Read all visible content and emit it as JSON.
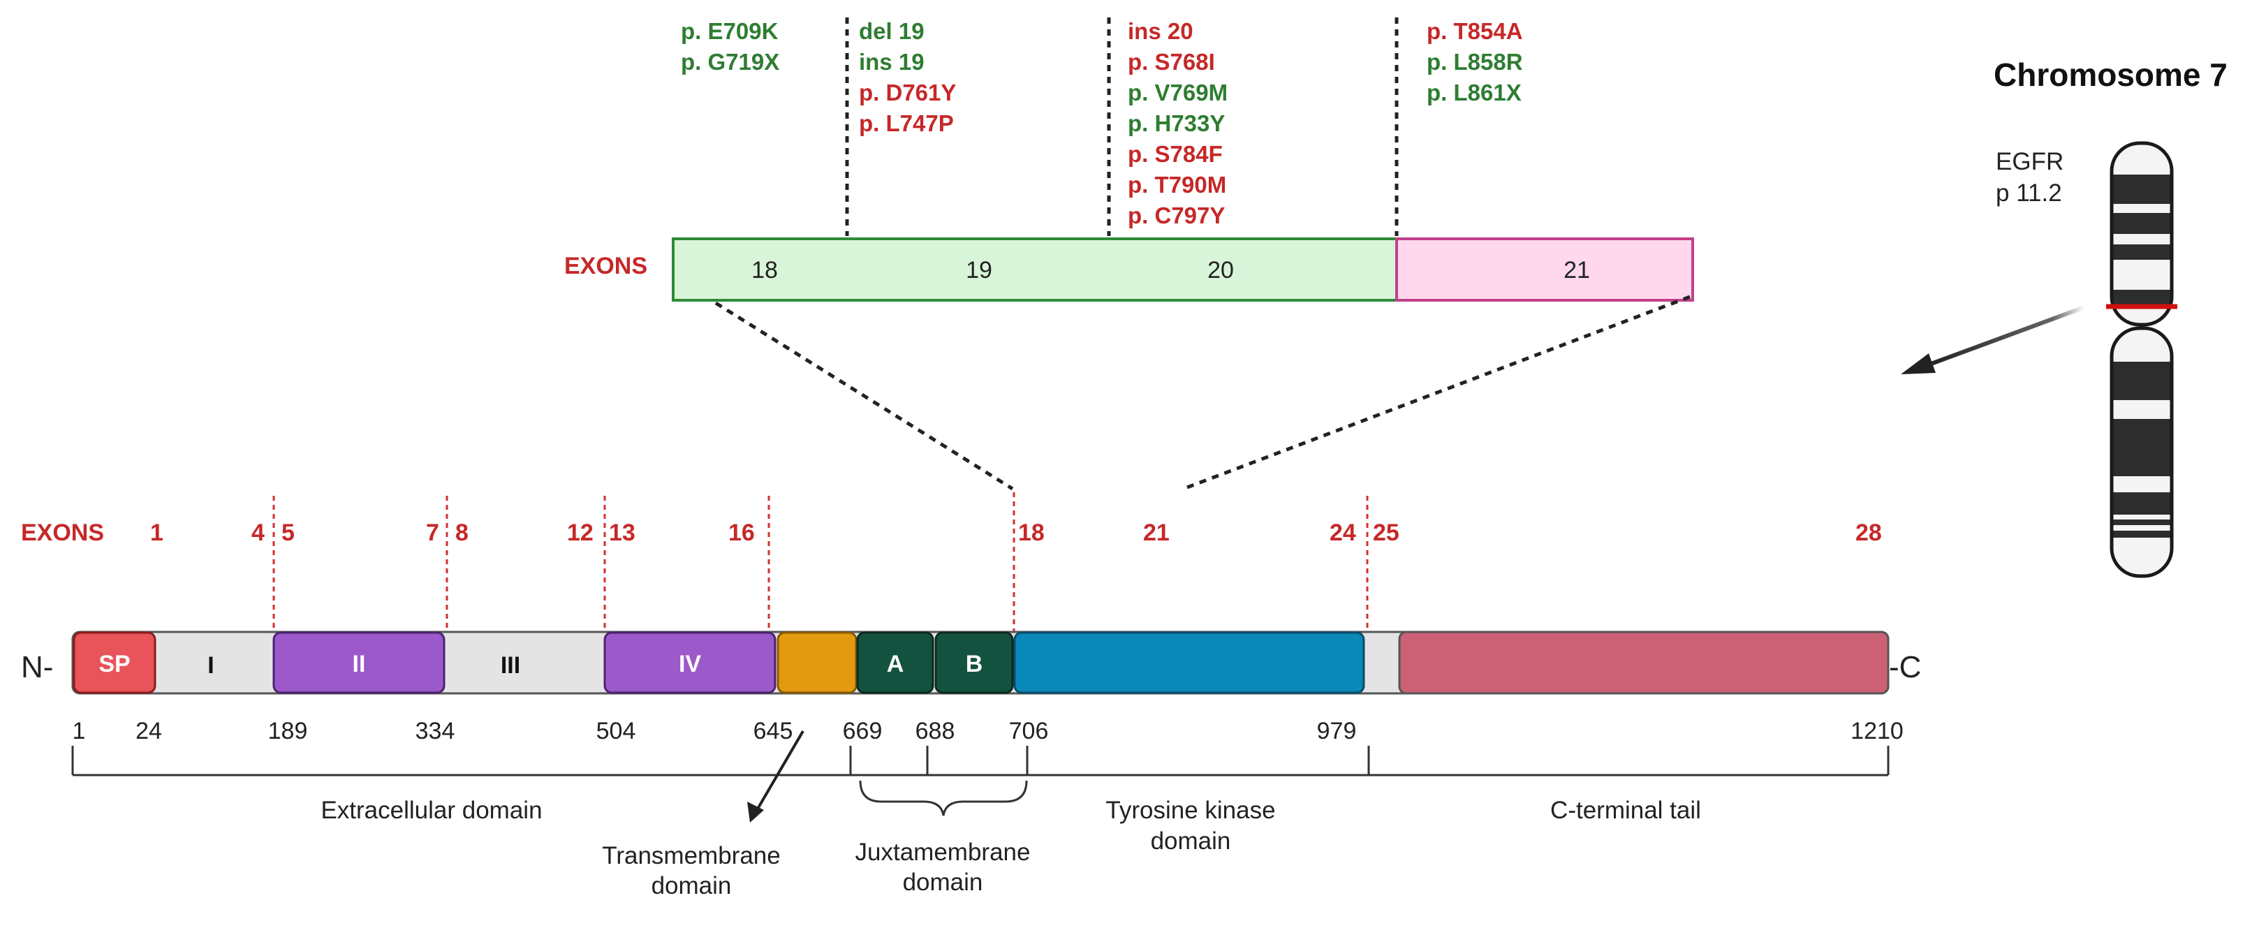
{
  "colors": {
    "green": "#2e7d32",
    "red": "#c62828",
    "exon_red": "#c62828",
    "sp": "#e8545a",
    "gray": "#e4e4e4",
    "purple": "#9b59c9",
    "tm": "#e39a10",
    "juxta": "#145240",
    "tk": "#0a88b8",
    "ctail": "#cc6075",
    "exon_green": "#d9f5d9",
    "exon_pink": "#ffd8ee"
  },
  "mutation_groups": [
    {
      "items": [
        {
          "t": "p. E709K",
          "c": "green"
        },
        {
          "t": "p. G719X",
          "c": "green"
        }
      ]
    },
    {
      "items": [
        {
          "t": "del 19",
          "c": "green"
        },
        {
          "t": "ins 19",
          "c": "green"
        },
        {
          "t": "p. D761Y",
          "c": "red"
        },
        {
          "t": "p. L747P",
          "c": "red"
        }
      ]
    },
    {
      "items": [
        {
          "t": "ins 20",
          "c": "red"
        },
        {
          "t": "p. S768I",
          "c": "red"
        },
        {
          "t": "p. V769M",
          "c": "green"
        },
        {
          "t": "p. H733Y",
          "c": "green"
        },
        {
          "t": "p. S784F",
          "c": "red"
        },
        {
          "t": "p. T790M",
          "c": "red"
        },
        {
          "t": "p. C797Y",
          "c": "red"
        }
      ]
    },
    {
      "items": [
        {
          "t": "p. T854A",
          "c": "red"
        },
        {
          "t": "p. L858R",
          "c": "green"
        },
        {
          "t": "p. L861X",
          "c": "green"
        }
      ]
    }
  ],
  "top_exons": {
    "label": "EXONS",
    "numbers": [
      "18",
      "19",
      "20",
      "21"
    ]
  },
  "chromosome": {
    "title": "Chromosome 7",
    "gene": "EGFR",
    "locus": "p 11.2"
  },
  "bottom_exons": {
    "label": "EXONS",
    "numbers": [
      "1",
      "4",
      "5",
      "7",
      "8",
      "12",
      "13",
      "16",
      "18",
      "21",
      "24",
      "25",
      "28"
    ]
  },
  "protein": {
    "n_term": "N-",
    "c_term": "-C",
    "segments": [
      "SP",
      "I",
      "II",
      "III",
      "IV",
      "",
      "A",
      "B",
      "",
      ""
    ]
  },
  "positions": [
    "1",
    "24",
    "189",
    "334",
    "504",
    "645",
    "669",
    "688",
    "706",
    "979",
    "1210"
  ],
  "domains": {
    "extracellular": "Extracellular domain",
    "transmembrane": [
      "Transmembrane",
      "domain"
    ],
    "juxtamembrane": [
      "Juxtamembrane",
      "domain"
    ],
    "tyrosine_kinase": [
      "Tyrosine kinase",
      "domain"
    ],
    "c_terminal": "C-terminal tail"
  }
}
